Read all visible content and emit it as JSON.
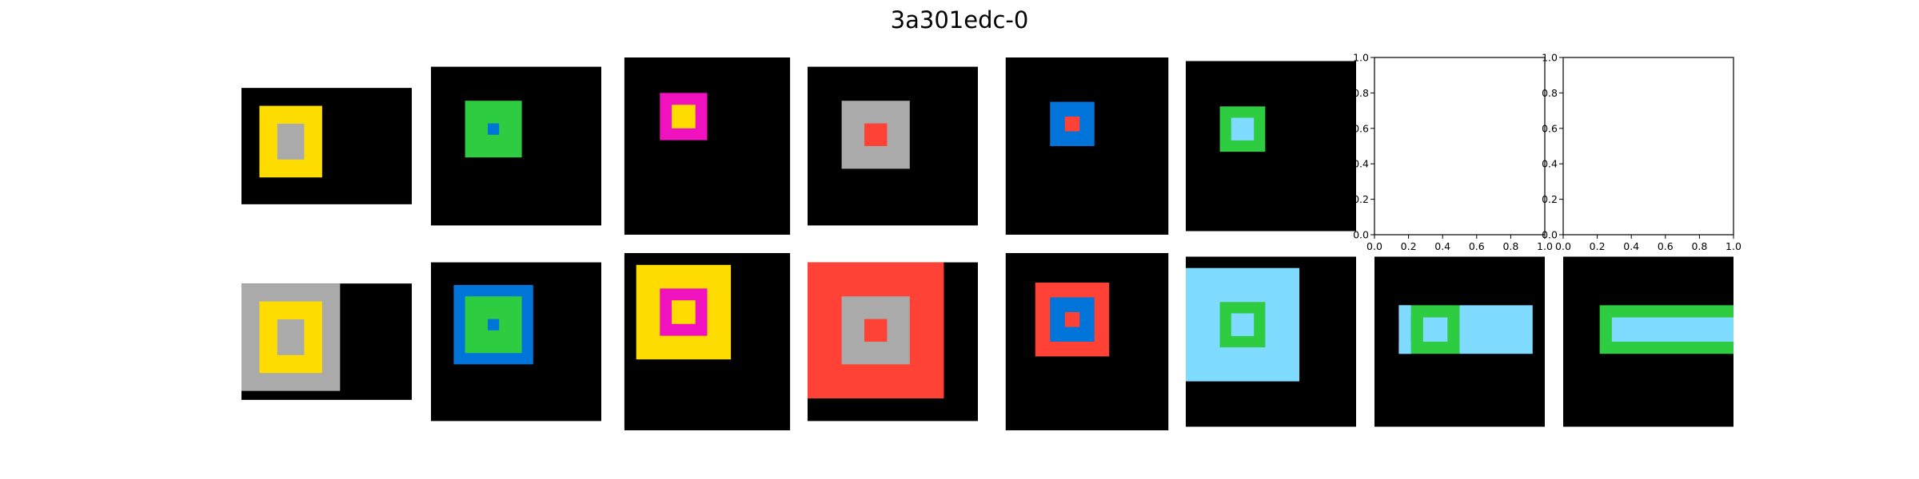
{
  "title": "3a301edc-0",
  "palette": {
    "0": "#000000",
    "2": "#2ecc40",
    "3": "#ff4136",
    "4": "#ffdc00",
    "5": "#aaaaaa",
    "6": "#f012be",
    "7": "#0074d9",
    "8": "#7fdbff"
  },
  "pairs": [
    {
      "input": {
        "rows": 13,
        "cols": 19,
        "rects": [
          {
            "r": 2,
            "c": 2,
            "h": 8,
            "w": 7,
            "color": "4"
          },
          {
            "r": 4,
            "c": 4,
            "h": 4,
            "w": 3,
            "color": "5"
          }
        ]
      },
      "output": {
        "rows": 13,
        "cols": 19,
        "rects": [
          {
            "r": 0,
            "c": 0,
            "h": 12,
            "w": 11,
            "color": "5"
          },
          {
            "r": 2,
            "c": 2,
            "h": 8,
            "w": 7,
            "color": "4"
          },
          {
            "r": 4,
            "c": 4,
            "h": 4,
            "w": 3,
            "color": "5"
          }
        ]
      }
    },
    {
      "input": {
        "rows": 14,
        "cols": 15,
        "rects": [
          {
            "r": 3,
            "c": 3,
            "h": 5,
            "w": 5,
            "color": "2"
          },
          {
            "r": 5,
            "c": 5,
            "h": 1,
            "w": 1,
            "color": "7"
          }
        ]
      },
      "output": {
        "rows": 14,
        "cols": 15,
        "rects": [
          {
            "r": 2,
            "c": 2,
            "h": 7,
            "w": 7,
            "color": "7"
          },
          {
            "r": 3,
            "c": 3,
            "h": 5,
            "w": 5,
            "color": "2"
          },
          {
            "r": 5,
            "c": 5,
            "h": 1,
            "w": 1,
            "color": "7"
          }
        ]
      }
    },
    {
      "input": {
        "rows": 15,
        "cols": 14,
        "rects": [
          {
            "r": 3,
            "c": 3,
            "h": 4,
            "w": 4,
            "color": "6"
          },
          {
            "r": 4,
            "c": 4,
            "h": 2,
            "w": 2,
            "color": "4"
          }
        ]
      },
      "output": {
        "rows": 15,
        "cols": 14,
        "rects": [
          {
            "r": 1,
            "c": 1,
            "h": 8,
            "w": 8,
            "color": "4"
          },
          {
            "r": 3,
            "c": 3,
            "h": 4,
            "w": 4,
            "color": "6"
          },
          {
            "r": 4,
            "c": 4,
            "h": 2,
            "w": 2,
            "color": "4"
          }
        ]
      }
    },
    {
      "input": {
        "rows": 14,
        "cols": 15,
        "rects": [
          {
            "r": 3,
            "c": 3,
            "h": 6,
            "w": 6,
            "color": "5"
          },
          {
            "r": 5,
            "c": 5,
            "h": 2,
            "w": 2,
            "color": "3"
          }
        ]
      },
      "output": {
        "rows": 14,
        "cols": 15,
        "rects": [
          {
            "r": 0,
            "c": 0,
            "h": 12,
            "w": 12,
            "color": "3"
          },
          {
            "r": 3,
            "c": 3,
            "h": 6,
            "w": 6,
            "color": "5"
          },
          {
            "r": 5,
            "c": 5,
            "h": 2,
            "w": 2,
            "color": "3"
          }
        ]
      }
    },
    {
      "input": {
        "rows": 12,
        "cols": 11,
        "rects": [
          {
            "r": 3,
            "c": 3,
            "h": 3,
            "w": 3,
            "color": "7"
          },
          {
            "r": 4,
            "c": 4,
            "h": 1,
            "w": 1,
            "color": "3"
          }
        ]
      },
      "output": {
        "rows": 12,
        "cols": 11,
        "rects": [
          {
            "r": 2,
            "c": 2,
            "h": 5,
            "w": 5,
            "color": "3"
          },
          {
            "r": 3,
            "c": 3,
            "h": 3,
            "w": 3,
            "color": "7"
          },
          {
            "r": 4,
            "c": 4,
            "h": 1,
            "w": 1,
            "color": "3"
          }
        ]
      }
    },
    {
      "input": {
        "rows": 15,
        "cols": 15,
        "rects": [
          {
            "r": 4,
            "c": 3,
            "h": 4,
            "w": 4,
            "color": "2"
          },
          {
            "r": 5,
            "c": 4,
            "h": 2,
            "w": 2,
            "color": "8"
          }
        ]
      },
      "output": {
        "rows": 15,
        "cols": 15,
        "rects": [
          {
            "r": 1,
            "c": 0,
            "h": 10,
            "w": 10,
            "color": "8"
          },
          {
            "r": 4,
            "c": 3,
            "h": 4,
            "w": 4,
            "color": "2"
          },
          {
            "r": 5,
            "c": 4,
            "h": 2,
            "w": 2,
            "color": "8"
          }
        ]
      }
    },
    {
      "input": null,
      "output": {
        "rows": 14,
        "cols": 14,
        "rects": [
          {
            "r": 4,
            "c": 3,
            "h": 4,
            "w": 4,
            "color": "2"
          },
          {
            "r": 5,
            "c": 4,
            "h": 2,
            "w": 2,
            "color": "8"
          },
          {
            "r": 4,
            "c": 7,
            "h": 4,
            "w": 6,
            "color": "8"
          },
          {
            "r": 4,
            "c": 2,
            "h": 1,
            "w": 1,
            "color": "8"
          },
          {
            "r": 7,
            "c": 2,
            "h": 1,
            "w": 1,
            "color": "8"
          },
          {
            "r": 4,
            "c": 2,
            "h": 4,
            "w": 1,
            "color": "8"
          }
        ]
      }
    },
    {
      "input": null,
      "output": {
        "rows": 14,
        "cols": 14,
        "rects": [
          {
            "r": 4,
            "c": 3,
            "h": 4,
            "w": 11,
            "color": "2"
          },
          {
            "r": 5,
            "c": 4,
            "h": 2,
            "w": 10,
            "color": "8"
          }
        ]
      }
    }
  ],
  "empty_axes": {
    "ticks": [
      "0.0",
      "0.2",
      "0.4",
      "0.6",
      "0.8",
      "1.0"
    ]
  }
}
